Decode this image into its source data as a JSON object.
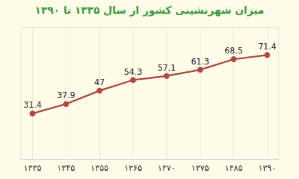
{
  "chart_data": {
    "type": "line",
    "title": "میزان شهرنشینی کشور از سال ۱۳۳۵ تا ۱۳۹۰",
    "categories": [
      "۱۳۳۵",
      "۱۳۴۵",
      "۱۳۵۵",
      "۱۳۶۵",
      "۱۳۷۰",
      "۱۳۷۵",
      "۱۳۸۵",
      "۱۳۹۰"
    ],
    "values": [
      31.4,
      37.9,
      47,
      54.3,
      57.1,
      61.3,
      68.5,
      71.4
    ],
    "color": "#b0493f",
    "marker": "circle",
    "ylim": [
      0,
      90
    ],
    "grid": true,
    "data_labels": true,
    "tick_labels": "x"
  }
}
